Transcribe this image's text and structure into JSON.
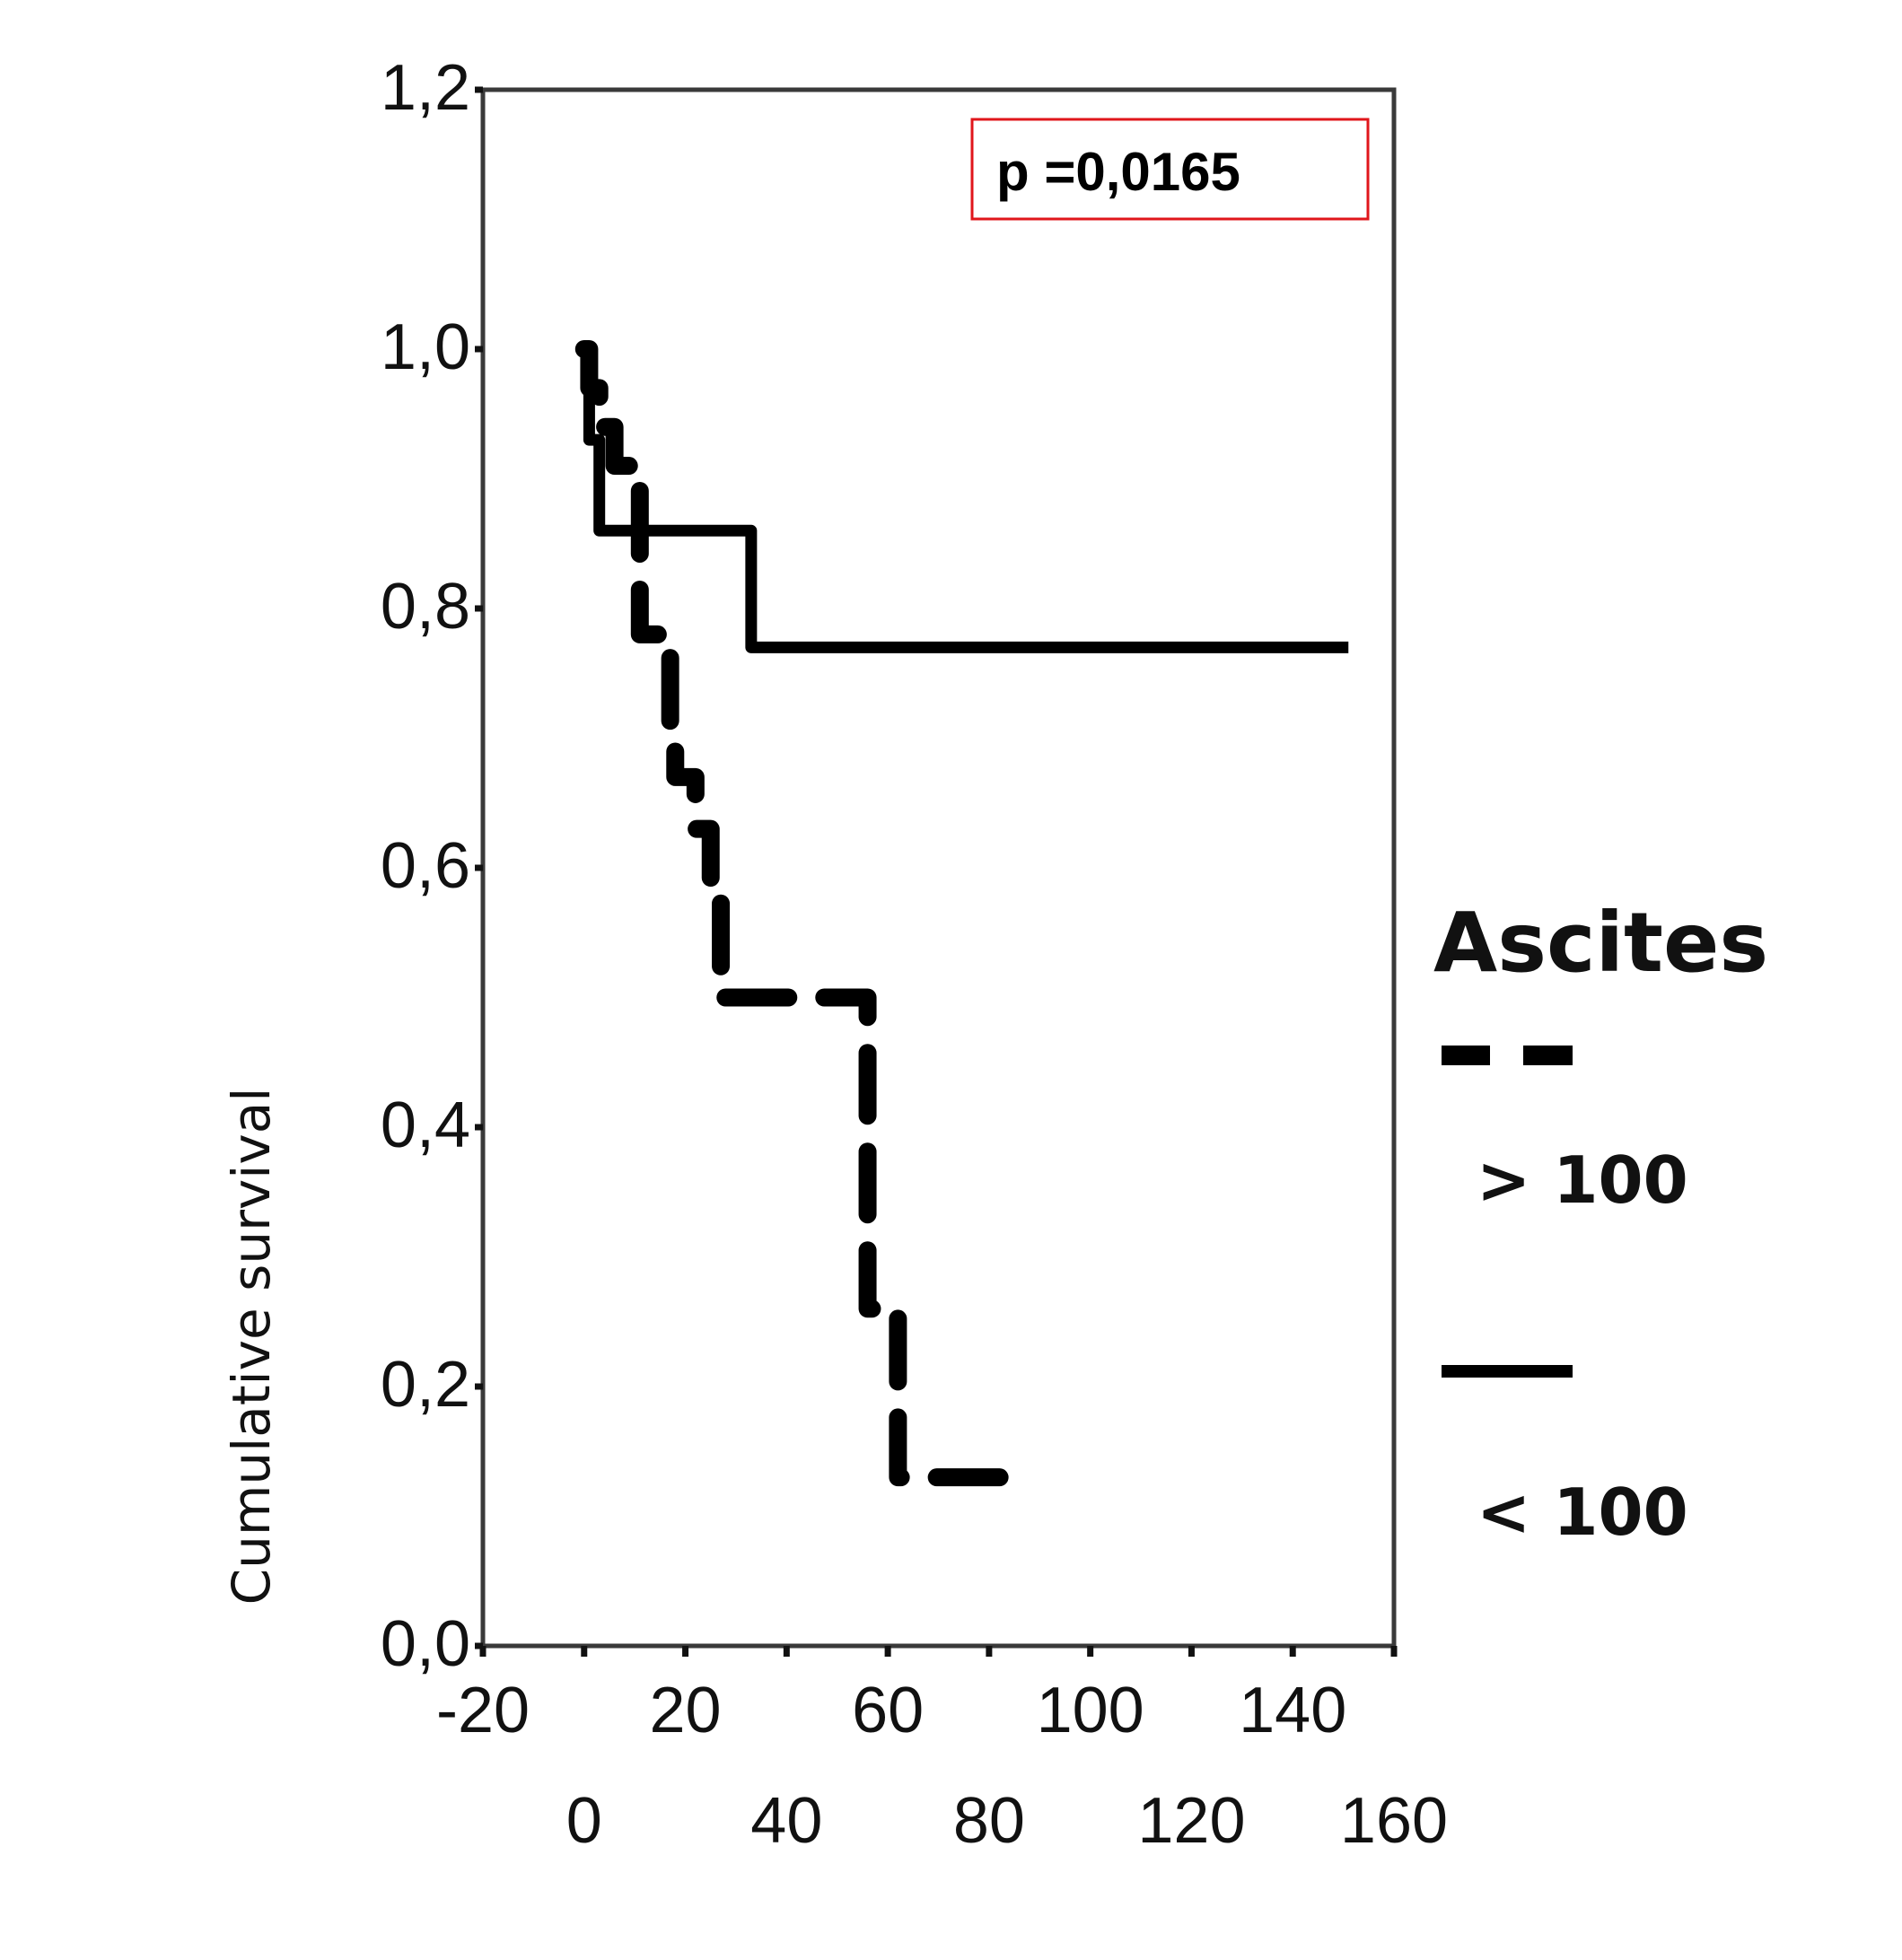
{
  "chart_data": {
    "type": "line",
    "subtype": "kaplan-meier-step",
    "title": "",
    "xlabel": "",
    "ylabel": "Cumulative survival",
    "xlim": [
      -20,
      160
    ],
    "ylim": [
      0.0,
      1.2
    ],
    "x_ticks": [
      -20,
      0,
      20,
      40,
      60,
      80,
      100,
      120,
      140,
      160
    ],
    "x_tick_labels": [
      "-20",
      "0",
      "20",
      "40",
      "60",
      "80",
      "100",
      "120",
      "140",
      "160"
    ],
    "y_ticks": [
      0.0,
      0.2,
      0.4,
      0.6,
      0.8,
      1.0,
      1.2
    ],
    "y_tick_labels": [
      "0,0",
      "0,2",
      "0,4",
      "0,6",
      "0,8",
      "1,0",
      "1,2"
    ],
    "grid": false,
    "annotation": "p =0,0165",
    "legend": {
      "title": "Ascites",
      "position": "right",
      "entries": [
        {
          "label": "> 100",
          "style": "dashed"
        },
        {
          "label": "< 100",
          "style": "solid"
        }
      ]
    },
    "series": [
      {
        "name": "> 100",
        "style": "dashed",
        "steps": [
          {
            "x": 0,
            "y": 1.0
          },
          {
            "x": 1,
            "y": 0.97
          },
          {
            "x": 3,
            "y": 0.94
          },
          {
            "x": 6,
            "y": 0.91
          },
          {
            "x": 11,
            "y": 0.78
          },
          {
            "x": 17,
            "y": 0.71
          },
          {
            "x": 18,
            "y": 0.67
          },
          {
            "x": 22,
            "y": 0.63
          },
          {
            "x": 25,
            "y": 0.58
          },
          {
            "x": 27,
            "y": 0.5
          },
          {
            "x": 56,
            "y": 0.26
          },
          {
            "x": 62,
            "y": 0.13
          }
        ],
        "end_x": 88
      },
      {
        "name": "< 100",
        "style": "solid",
        "steps": [
          {
            "x": 0,
            "y": 1.0
          },
          {
            "x": 1,
            "y": 0.93
          },
          {
            "x": 3,
            "y": 0.86
          },
          {
            "x": 33,
            "y": 0.77
          }
        ],
        "end_x": 151
      }
    ]
  }
}
